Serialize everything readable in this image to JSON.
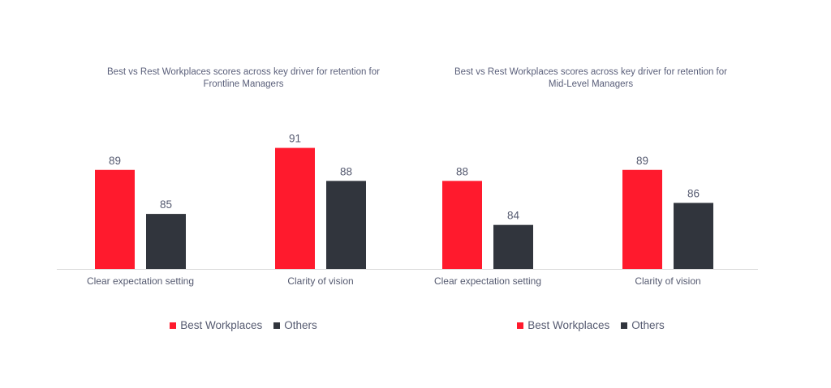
{
  "chart_data": [
    {
      "type": "bar",
      "title_lines": [
        "Best vs Rest Workplaces scores across key driver for retention for",
        "Frontline Managers"
      ],
      "categories": [
        "Clear expectation setting",
        "Clarity of vision"
      ],
      "series": [
        {
          "name": "Best Workplaces",
          "values": [
            89,
            91
          ],
          "color": "#ff1a2d"
        },
        {
          "name": "Others",
          "values": [
            85,
            88
          ],
          "color": "#31353d"
        }
      ],
      "ylim": [
        80,
        92
      ],
      "grid": false,
      "legend_position": "bottom"
    },
    {
      "type": "bar",
      "title_lines": [
        "Best vs Rest Workplaces scores across key driver for retention for",
        "Mid-Level Managers"
      ],
      "categories": [
        "Clear expectation setting",
        "Clarity of vision"
      ],
      "series": [
        {
          "name": "Best Workplaces",
          "values": [
            88,
            89
          ],
          "color": "#ff1a2d"
        },
        {
          "name": "Others",
          "values": [
            84,
            86
          ],
          "color": "#31353d"
        }
      ],
      "ylim": [
        80,
        92
      ],
      "grid": false,
      "legend_position": "bottom"
    }
  ]
}
